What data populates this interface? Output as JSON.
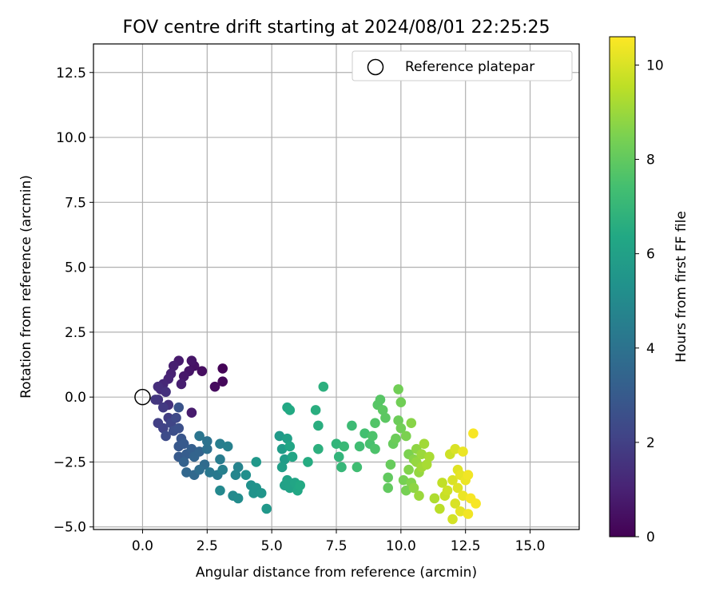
{
  "chart_data": {
    "type": "scatter",
    "title": "FOV centre drift starting at 2024/08/01 22:25:25",
    "xlabel": "Angular distance from reference (arcmin)",
    "ylabel": "Rotation from reference (arcmin)",
    "xlim": [
      -1.9,
      16.9
    ],
    "ylim": [
      -5.1,
      13.6
    ],
    "xticks": [
      "0.0",
      "2.5",
      "5.0",
      "7.5",
      "10.0",
      "12.5",
      "15.0"
    ],
    "yticks": [
      "12.5",
      "10.0",
      "7.5",
      "5.0",
      "2.5",
      "0.0",
      "−2.5",
      "−5.0"
    ],
    "grid": true,
    "legend": {
      "label": "Reference platepar",
      "position": "top-right"
    },
    "reference_point": {
      "x": 0.0,
      "y": 0.0
    },
    "colorbar": {
      "label": "Hours from first FF file",
      "min": 0,
      "max": 10.6,
      "ticks": [
        "0",
        "2",
        "4",
        "6",
        "8",
        "10"
      ],
      "colormap": "viridis"
    },
    "points": [
      [
        3.1,
        1.1,
        0.1
      ],
      [
        3.1,
        0.6,
        0.2
      ],
      [
        2.8,
        0.4,
        0.3
      ],
      [
        2.3,
        1.0,
        0.4
      ],
      [
        2.0,
        1.2,
        0.5
      ],
      [
        1.9,
        1.4,
        0.6
      ],
      [
        1.8,
        1.0,
        0.6
      ],
      [
        1.6,
        0.8,
        0.7
      ],
      [
        1.4,
        1.4,
        0.8
      ],
      [
        1.2,
        1.2,
        0.9
      ],
      [
        1.9,
        -0.6,
        0.8
      ],
      [
        1.5,
        0.5,
        0.9
      ],
      [
        1.1,
        0.9,
        1.0
      ],
      [
        1.0,
        0.7,
        1.1
      ],
      [
        0.8,
        0.5,
        1.2
      ],
      [
        0.7,
        0.3,
        1.3
      ],
      [
        0.6,
        0.4,
        1.4
      ],
      [
        0.9,
        0.2,
        1.5
      ],
      [
        1.0,
        -0.3,
        1.5
      ],
      [
        0.6,
        -0.1,
        1.6
      ],
      [
        0.5,
        -0.1,
        1.7
      ],
      [
        0.8,
        -0.4,
        1.8
      ],
      [
        1.0,
        -0.8,
        1.9
      ],
      [
        0.6,
        -1.0,
        2.0
      ],
      [
        0.8,
        -1.2,
        2.1
      ],
      [
        1.1,
        -1.0,
        2.2
      ],
      [
        1.3,
        -0.8,
        2.3
      ],
      [
        0.9,
        -1.5,
        2.4
      ],
      [
        1.2,
        -1.3,
        2.5
      ],
      [
        1.4,
        -1.2,
        2.6
      ],
      [
        1.4,
        -0.4,
        2.7
      ],
      [
        1.5,
        -1.6,
        2.8
      ],
      [
        1.4,
        -1.9,
        2.9
      ],
      [
        1.6,
        -1.8,
        3.0
      ],
      [
        1.4,
        -2.3,
        3.0
      ],
      [
        1.7,
        -2.2,
        3.1
      ],
      [
        1.9,
        -2.0,
        3.2
      ],
      [
        1.6,
        -2.5,
        3.3
      ],
      [
        2.0,
        -2.3,
        3.4
      ],
      [
        2.2,
        -2.1,
        3.4
      ],
      [
        1.7,
        -2.9,
        3.5
      ],
      [
        2.0,
        -3.0,
        3.6
      ],
      [
        2.4,
        -2.6,
        3.7
      ],
      [
        2.2,
        -2.8,
        3.8
      ],
      [
        2.5,
        -2.0,
        3.9
      ],
      [
        2.5,
        -1.7,
        4.0
      ],
      [
        2.2,
        -1.5,
        4.1
      ],
      [
        2.6,
        -2.9,
        4.2
      ],
      [
        2.9,
        -3.0,
        4.3
      ],
      [
        3.0,
        -2.4,
        4.4
      ],
      [
        3.0,
        -1.8,
        4.5
      ],
      [
        3.3,
        -1.9,
        4.6
      ],
      [
        3.1,
        -2.8,
        4.6
      ],
      [
        3.7,
        -2.7,
        4.7
      ],
      [
        3.6,
        -3.0,
        4.8
      ],
      [
        3.0,
        -3.6,
        4.9
      ],
      [
        3.5,
        -3.8,
        5.0
      ],
      [
        3.7,
        -3.9,
        5.1
      ],
      [
        4.0,
        -3.0,
        5.2
      ],
      [
        4.2,
        -3.4,
        5.3
      ],
      [
        4.3,
        -3.7,
        5.4
      ],
      [
        4.4,
        -3.5,
        5.4
      ],
      [
        4.6,
        -3.7,
        5.5
      ],
      [
        4.4,
        -2.5,
        5.6
      ],
      [
        4.8,
        -4.3,
        5.6
      ],
      [
        5.3,
        -1.5,
        5.7
      ],
      [
        5.4,
        -2.0,
        5.8
      ],
      [
        5.5,
        -2.4,
        5.8
      ],
      [
        5.4,
        -2.7,
        5.9
      ],
      [
        5.6,
        -1.6,
        6.0
      ],
      [
        5.5,
        -3.4,
        6.0
      ],
      [
        5.6,
        -3.2,
        6.1
      ],
      [
        5.7,
        -3.5,
        6.1
      ],
      [
        5.7,
        -1.9,
        6.2
      ],
      [
        5.8,
        -2.3,
        6.2
      ],
      [
        5.9,
        -3.3,
        6.2
      ],
      [
        6.0,
        -3.6,
        6.3
      ],
      [
        5.6,
        -0.4,
        6.3
      ],
      [
        5.7,
        -0.5,
        6.4
      ],
      [
        6.1,
        -3.4,
        6.4
      ],
      [
        6.4,
        -2.5,
        6.5
      ],
      [
        6.7,
        -0.5,
        6.6
      ],
      [
        6.8,
        -1.1,
        6.6
      ],
      [
        6.8,
        -2.0,
        6.7
      ],
      [
        7.0,
        0.4,
        6.7
      ],
      [
        7.5,
        -1.8,
        6.9
      ],
      [
        7.6,
        -2.3,
        6.9
      ],
      [
        7.7,
        -2.7,
        7.0
      ],
      [
        7.8,
        -1.9,
        7.1
      ],
      [
        8.1,
        -1.1,
        7.2
      ],
      [
        8.3,
        -2.7,
        7.3
      ],
      [
        8.4,
        -1.9,
        7.3
      ],
      [
        8.6,
        -1.4,
        7.4
      ],
      [
        8.8,
        -1.8,
        7.5
      ],
      [
        8.9,
        -1.5,
        7.6
      ],
      [
        9.0,
        -2.0,
        7.6
      ],
      [
        9.0,
        -1.0,
        7.7
      ],
      [
        9.1,
        -0.3,
        7.8
      ],
      [
        9.2,
        -0.1,
        7.8
      ],
      [
        9.3,
        -0.5,
        7.9
      ],
      [
        9.4,
        -0.8,
        7.9
      ],
      [
        9.5,
        -3.1,
        8.0
      ],
      [
        9.5,
        -3.5,
        8.0
      ],
      [
        9.6,
        -2.6,
        8.1
      ],
      [
        9.7,
        -1.8,
        8.1
      ],
      [
        9.8,
        -1.6,
        8.2
      ],
      [
        9.9,
        -0.9,
        8.2
      ],
      [
        9.9,
        0.3,
        8.3
      ],
      [
        10.0,
        -0.2,
        8.3
      ],
      [
        10.0,
        -1.2,
        8.3
      ],
      [
        10.1,
        -3.2,
        8.4
      ],
      [
        10.2,
        -3.6,
        8.4
      ],
      [
        10.2,
        -1.5,
        8.5
      ],
      [
        10.3,
        -2.2,
        8.5
      ],
      [
        10.3,
        -2.8,
        8.6
      ],
      [
        10.4,
        -3.3,
        8.6
      ],
      [
        10.4,
        -1.0,
        8.7
      ],
      [
        10.5,
        -2.4,
        8.7
      ],
      [
        10.5,
        -3.5,
        8.8
      ],
      [
        10.6,
        -2.0,
        8.8
      ],
      [
        10.6,
        -2.5,
        8.9
      ],
      [
        10.7,
        -2.9,
        8.9
      ],
      [
        10.7,
        -3.8,
        9.0
      ],
      [
        10.8,
        -2.2,
        9.0
      ],
      [
        10.8,
        -2.7,
        9.1
      ],
      [
        10.9,
        -1.8,
        9.1
      ],
      [
        11.0,
        -2.6,
        9.2
      ],
      [
        11.1,
        -2.3,
        9.2
      ],
      [
        11.3,
        -3.9,
        9.3
      ],
      [
        11.5,
        -4.3,
        9.5
      ],
      [
        11.6,
        -3.3,
        9.6
      ],
      [
        11.7,
        -3.8,
        9.7
      ],
      [
        11.8,
        -3.6,
        9.8
      ],
      [
        11.9,
        -2.2,
        9.8
      ],
      [
        12.0,
        -4.7,
        9.9
      ],
      [
        12.0,
        -3.2,
        10.0
      ],
      [
        12.1,
        -2.0,
        10.0
      ],
      [
        12.1,
        -4.1,
        10.0
      ],
      [
        12.2,
        -3.5,
        10.1
      ],
      [
        12.2,
        -2.8,
        10.1
      ],
      [
        12.3,
        -4.4,
        10.2
      ],
      [
        12.3,
        -3.0,
        10.2
      ],
      [
        12.4,
        -2.1,
        10.3
      ],
      [
        12.4,
        -3.8,
        10.3
      ],
      [
        12.5,
        -3.2,
        10.3
      ],
      [
        12.6,
        -4.5,
        10.4
      ],
      [
        12.6,
        -3.0,
        10.4
      ],
      [
        12.7,
        -3.9,
        10.5
      ],
      [
        12.8,
        -1.4,
        10.5
      ],
      [
        12.9,
        -4.1,
        10.5
      ]
    ]
  }
}
